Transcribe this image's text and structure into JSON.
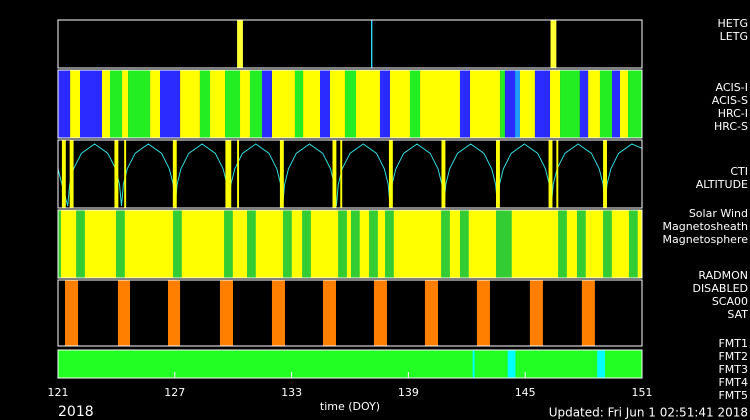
{
  "chart_data": {
    "type": "timeline",
    "xlabel": "time (DOY)",
    "year": "2018",
    "updated": "Updated: Fri Jun  1 02:51:41 2018",
    "xlim": [
      121,
      151
    ],
    "xticks": [
      121,
      127,
      133,
      139,
      145,
      151
    ],
    "panels": [
      {
        "series": [
          {
            "name": "HETG",
            "color": "#ffff33",
            "intervals": [
              [
                130.2,
                130.5
              ],
              [
                146.3,
                146.6
              ]
            ]
          },
          {
            "name": "LETG",
            "color": "#33ddff",
            "intervals": [
              [
                137.08,
                137.15
              ]
            ]
          }
        ]
      },
      {
        "series": [
          {
            "name": "ACIS-I",
            "color": "#2b2bff",
            "intervals": [
              [
                121.0,
                121.62
              ],
              [
                122.13,
                123.26
              ],
              [
                126.24,
                127.27
              ],
              [
                131.48,
                131.99
              ],
              [
                134.46,
                134.97
              ],
              [
                137.54,
                138.05
              ],
              [
                141.65,
                142.16
              ],
              [
                143.96,
                144.48
              ],
              [
                145.5,
                146.27
              ],
              [
                147.81,
                148.23
              ],
              [
                149.46,
                149.87
              ]
            ]
          },
          {
            "name": "ACIS-S",
            "color": "#ffff00",
            "intervals": [
              [
                121.62,
                122.13
              ],
              [
                123.26,
                123.67
              ],
              [
                124.29,
                124.6
              ],
              [
                125.73,
                126.24
              ],
              [
                127.27,
                128.29
              ],
              [
                128.81,
                129.58
              ],
              [
                130.35,
                130.86
              ],
              [
                131.99,
                133.17
              ],
              [
                133.59,
                134.46
              ],
              [
                134.97,
                135.74
              ],
              [
                136.31,
                137.54
              ],
              [
                138.05,
                139.08
              ],
              [
                139.6,
                141.65
              ],
              [
                142.16,
                143.71
              ],
              [
                144.73,
                145.5
              ],
              [
                146.27,
                146.79
              ],
              [
                148.23,
                148.84
              ],
              [
                149.87,
                150.28
              ]
            ]
          },
          {
            "name": "HRC-I",
            "color": "#1e9fff",
            "intervals": [
              [
                144.48,
                144.73
              ]
            ]
          },
          {
            "name": "HRC-S",
            "color": "#22ee22",
            "intervals": [
              [
                123.67,
                124.29
              ],
              [
                124.6,
                125.73
              ],
              [
                128.29,
                128.81
              ],
              [
                129.58,
                130.35
              ],
              [
                130.86,
                131.48
              ],
              [
                133.17,
                133.59
              ],
              [
                135.74,
                136.31
              ],
              [
                139.08,
                139.6
              ],
              [
                143.71,
                143.96
              ],
              [
                146.79,
                147.81
              ],
              [
                148.84,
                149.46
              ],
              [
                150.28,
                151.0
              ]
            ]
          }
        ]
      },
      {
        "ylim": [
          0,
          1
        ],
        "series": [
          {
            "name": "CTI",
            "color": "#ffff00",
            "intervals": [
              [
                121.2,
                121.4
              ],
              [
                121.6,
                121.8
              ],
              [
                123.9,
                124.1
              ],
              [
                124.4,
                124.5
              ],
              [
                126.9,
                127.1
              ],
              [
                129.6,
                129.9
              ],
              [
                130.2,
                130.3
              ],
              [
                132.4,
                132.6
              ],
              [
                135.1,
                135.3
              ],
              [
                135.5,
                135.6
              ],
              [
                138.0,
                138.2
              ],
              [
                140.7,
                140.9
              ],
              [
                143.5,
                143.7
              ],
              [
                146.2,
                146.4
              ],
              [
                146.6,
                146.7
              ],
              [
                149.0,
                149.2
              ]
            ]
          },
          {
            "name": "ALTITUDE",
            "color": "#33dddd",
            "x": [
              121.0,
              121.2,
              121.4,
              121.5,
              121.6,
              121.8,
              122.2,
              122.88,
              123.56,
              123.96,
              124.16,
              124.26,
              124.36,
              124.56,
              124.96,
              125.64,
              126.32,
              126.72,
              126.92,
              127.02,
              127.12,
              127.32,
              127.72,
              128.4,
              129.08,
              129.48,
              129.68,
              129.78,
              129.88,
              130.08,
              130.48,
              131.16,
              131.84,
              132.24,
              132.44,
              132.54,
              132.64,
              132.84,
              133.24,
              133.92,
              134.6,
              135.0,
              135.2,
              135.3,
              135.4,
              135.6,
              136.0,
              136.68,
              137.36,
              137.76,
              137.96,
              138.06,
              138.16,
              138.36,
              138.76,
              139.44,
              140.12,
              140.52,
              140.72,
              140.82,
              140.92,
              141.12,
              141.52,
              142.2,
              142.88,
              143.28,
              143.48,
              143.58,
              143.68,
              143.88,
              144.28,
              144.96,
              145.64,
              146.04,
              146.24,
              146.34,
              146.44,
              146.64,
              147.04,
              147.72,
              148.4,
              148.8,
              149.0,
              149.1,
              149.2,
              149.4,
              149.8,
              150.48,
              151.0
            ],
            "values": [
              0.6,
              0.35,
              0.12,
              0,
              0.35,
              0.6,
              0.85,
              1,
              0.85,
              0.6,
              0.35,
              0,
              0.35,
              0.6,
              0.85,
              1,
              0.85,
              0.6,
              0.35,
              0,
              0.35,
              0.6,
              0.85,
              1,
              0.85,
              0.6,
              0.35,
              0,
              0.35,
              0.6,
              0.85,
              1,
              0.85,
              0.6,
              0.35,
              0,
              0.35,
              0.6,
              0.85,
              1,
              0.85,
              0.6,
              0.35,
              0,
              0.35,
              0.6,
              0.85,
              1,
              0.85,
              0.6,
              0.35,
              0,
              0.35,
              0.6,
              0.85,
              1,
              0.85,
              0.6,
              0.35,
              0,
              0.35,
              0.6,
              0.85,
              1,
              0.85,
              0.6,
              0.35,
              0,
              0.35,
              0.6,
              0.85,
              1,
              0.85,
              0.6,
              0.35,
              0,
              0.35,
              0.6,
              0.85,
              1,
              0.85,
              0.6,
              0.35,
              0,
              0.35,
              0.6,
              0.85,
              1,
              0.93
            ]
          }
        ]
      },
      {
        "series": [
          {
            "name": "Solar Wind",
            "color": "#33cc33",
            "intervals": [
              [
                121.0,
                121.15
              ],
              [
                121.93,
                122.38
              ],
              [
                123.98,
                124.43
              ],
              [
                126.91,
                127.36
              ],
              [
                129.53,
                129.98
              ],
              [
                130.71,
                131.16
              ],
              [
                132.56,
                133.01
              ],
              [
                133.54,
                133.99
              ],
              [
                135.39,
                135.84
              ],
              [
                136.05,
                136.5
              ],
              [
                136.98,
                137.43
              ],
              [
                137.8,
                138.25
              ],
              [
                140.68,
                141.13
              ],
              [
                141.65,
                142.1
              ],
              [
                143.5,
                143.95
              ],
              [
                143.86,
                144.31
              ],
              [
                146.69,
                147.14
              ],
              [
                147.66,
                148.11
              ],
              [
                149.0,
                149.45
              ],
              [
                150.33,
                150.78
              ]
            ]
          },
          {
            "name": "Magnetosheath",
            "color": "#00ffff",
            "intervals": [
              [
                122.03,
                122.23
              ],
              [
                124.08,
                124.28
              ],
              [
                127.01,
                127.21
              ],
              [
                129.63,
                129.83
              ],
              [
                130.81,
                131.01
              ],
              [
                132.66,
                132.86
              ],
              [
                133.64,
                133.84
              ],
              [
                135.49,
                135.69
              ],
              [
                136.15,
                136.35
              ],
              [
                137.08,
                137.28
              ],
              [
                137.9,
                138.1
              ],
              [
                140.78,
                140.98
              ],
              [
                141.75,
                141.95
              ],
              [
                143.6,
                143.8
              ],
              [
                143.96,
                144.16
              ],
              [
                146.79,
                146.99
              ],
              [
                147.76,
                147.96
              ],
              [
                149.1,
                149.3
              ],
              [
                150.43,
                150.63
              ]
            ]
          },
          {
            "name": "Magnetosphere",
            "color": "#ffff00",
            "intervals": [
              [
                121.0,
                151.0
              ]
            ]
          }
        ]
      },
      {
        "title": "RADMON",
        "title_color": "#ff7700",
        "series": [
          {
            "name": "DISABLED",
            "color": "#ff8000",
            "intervals": [
              [
                121.36,
                122.03
              ],
              [
                124.08,
                124.7
              ],
              [
                126.65,
                127.27
              ],
              [
                129.32,
                129.99
              ],
              [
                131.99,
                132.66
              ],
              [
                134.61,
                135.28
              ],
              [
                137.23,
                137.9
              ],
              [
                139.85,
                140.52
              ],
              [
                142.52,
                143.19
              ],
              [
                145.24,
                145.91
              ],
              [
                147.91,
                148.58
              ]
            ]
          },
          {
            "name": "SCA00",
            "color": "#ff4a10",
            "intervals": []
          },
          {
            "name": "SAT",
            "color": "#ff4a10",
            "intervals": []
          }
        ]
      },
      {
        "series": [
          {
            "name": "FMT1",
            "color": "#00ffff",
            "intervals": [
              [
                142.3,
                142.4
              ],
              [
                144.1,
                144.5
              ],
              [
                148.7,
                149.1
              ]
            ]
          },
          {
            "name": "FMT2",
            "color": "#22ff22",
            "intervals": [
              [
                121.0,
                151.0
              ]
            ]
          },
          {
            "name": "FMT3",
            "color": "#ff8000",
            "intervals": []
          },
          {
            "name": "FMT4",
            "color": "#ffaa00",
            "intervals": []
          },
          {
            "name": "FMT5",
            "color": "#ff4a10",
            "intervals": []
          }
        ]
      }
    ]
  }
}
